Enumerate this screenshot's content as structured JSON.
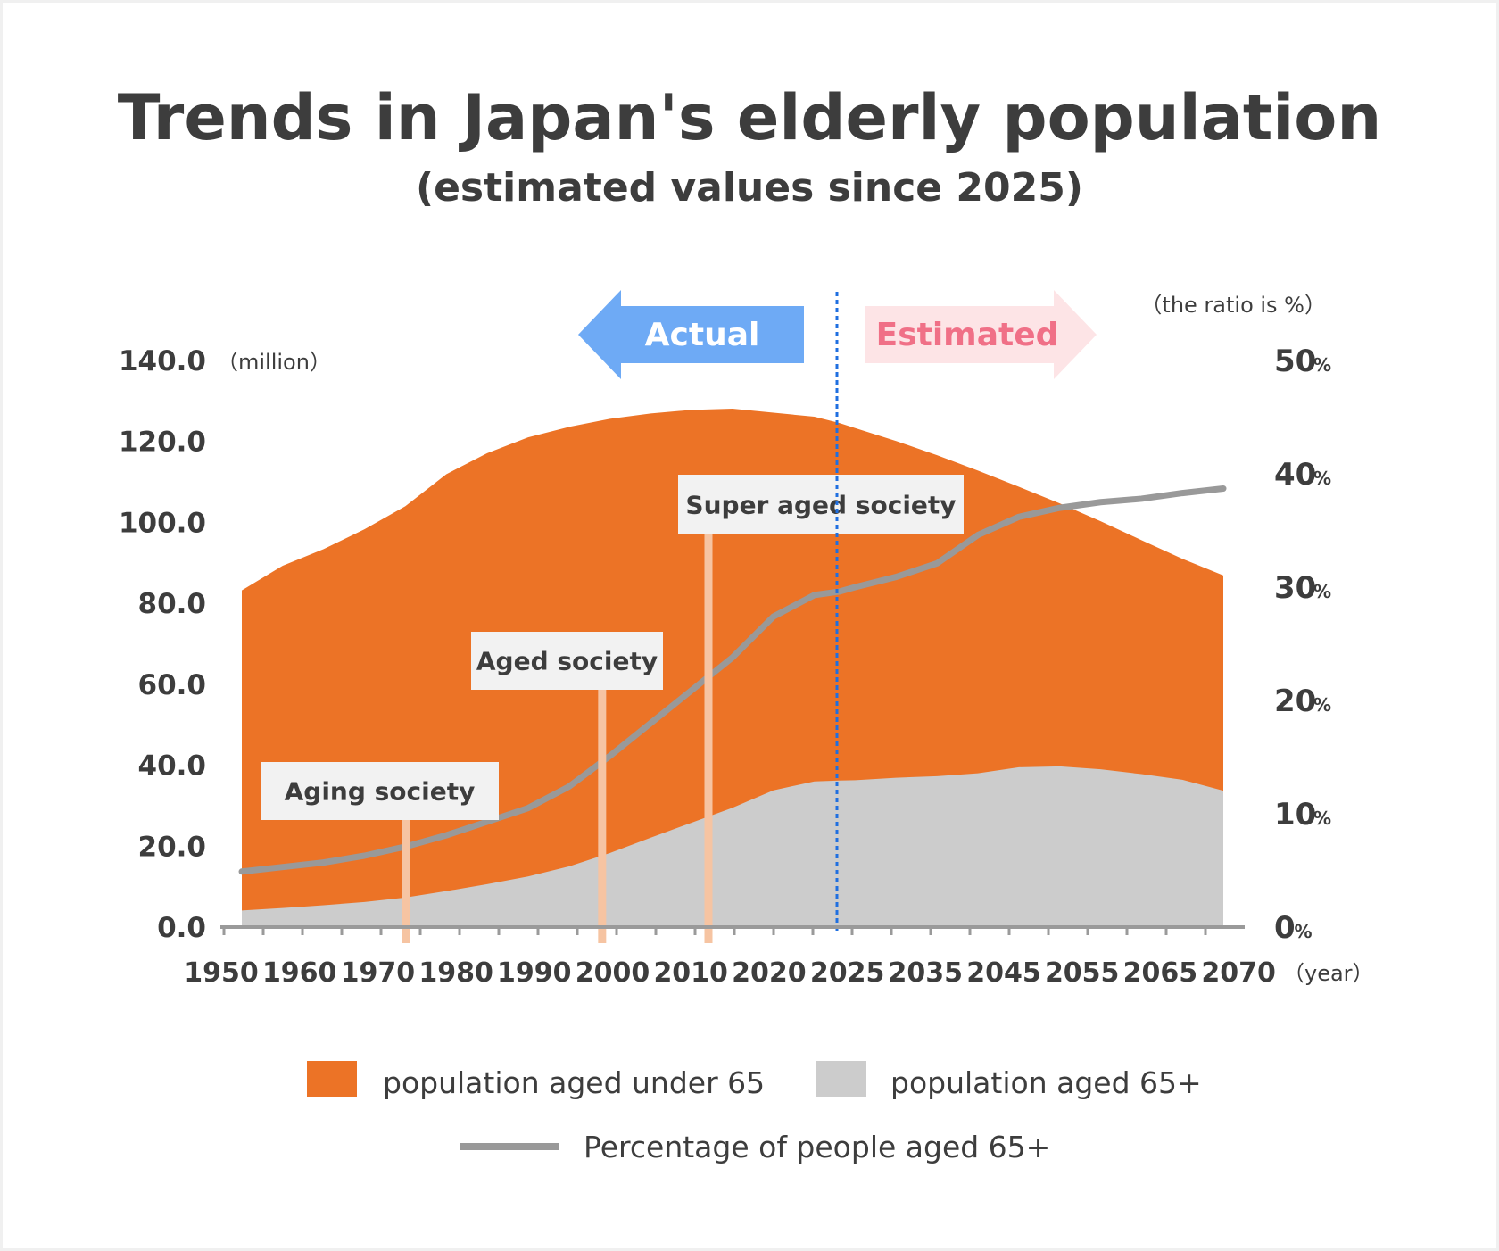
{
  "chart_data": {
    "type": "area",
    "title": "Trends in Japan's elderly population",
    "subtitle": "(estimated values since 2025)",
    "left_unit": "（million）",
    "right_unit": "（the ratio is %）",
    "x_unit": "（year）",
    "ylim": [
      0,
      140
    ],
    "y2lim": [
      0,
      50
    ],
    "x_tick_labels": [
      "1950",
      "1960",
      "1970",
      "1980",
      "1990",
      "2000",
      "2010",
      "2020",
      "2025",
      "2035",
      "2045",
      "2055",
      "2065",
      "2070"
    ],
    "y_tick_labels": [
      "0.0",
      "20.0",
      "40.0",
      "60.0",
      "80.0",
      "100.0",
      "120.0",
      "140.0"
    ],
    "y2_ticks": [
      {
        "value": 0,
        "num": "0",
        "pct": "%"
      },
      {
        "value": 10,
        "num": "10",
        "pct": "%"
      },
      {
        "value": 20,
        "num": "20",
        "pct": "%"
      },
      {
        "value": 30,
        "num": "30",
        "pct": "%"
      },
      {
        "value": 40,
        "num": "40",
        "pct": "%"
      },
      {
        "value": 50,
        "num": "50",
        "pct": "%"
      }
    ],
    "x": [
      "1950",
      "1955",
      "1960",
      "1965",
      "1970",
      "1975",
      "1980",
      "1985",
      "1990",
      "1995",
      "2000",
      "2005",
      "2010",
      "2015",
      "2020",
      "2023",
      "2025",
      "2030",
      "2035",
      "2040",
      "2045",
      "2050",
      "2055",
      "2060",
      "2065",
      "2070"
    ],
    "series": [
      {
        "name": "population aged under 65",
        "color": "#ec7326",
        "kind": "area",
        "total_values": [
          83.2,
          89.3,
          93.4,
          98.3,
          104.0,
          111.9,
          117.1,
          121.0,
          123.6,
          125.6,
          126.9,
          127.8,
          128.1,
          127.1,
          126.1,
          124.6,
          123.3,
          120.1,
          116.6,
          112.8,
          108.8,
          104.7,
          100.3,
          95.6,
          91.0,
          86.9
        ]
      },
      {
        "name": "population aged 65+",
        "color": "#cccccc",
        "kind": "area",
        "values": [
          4.1,
          4.7,
          5.4,
          6.2,
          7.3,
          8.9,
          10.6,
          12.5,
          15.0,
          18.3,
          22.1,
          25.8,
          29.5,
          33.8,
          36.0,
          36.2,
          36.3,
          36.9,
          37.3,
          38.0,
          39.5,
          39.7,
          39.0,
          37.8,
          36.4,
          33.7
        ]
      },
      {
        "name": "Percentage of people aged 65+",
        "color": "#999999",
        "kind": "line",
        "axis": "right",
        "values": [
          4.9,
          5.3,
          5.7,
          6.3,
          7.1,
          8.1,
          9.3,
          10.5,
          12.4,
          15.1,
          18.0,
          20.9,
          23.8,
          27.4,
          29.3,
          29.6,
          30.0,
          30.9,
          32.1,
          34.6,
          36.2,
          37.0,
          37.5,
          37.8,
          38.3,
          38.7
        ]
      }
    ],
    "annotations": [
      {
        "label": "Aging society",
        "year": 1970
      },
      {
        "label": "Aged society",
        "year": 1994
      },
      {
        "label": "Super aged society",
        "year": 2007
      }
    ],
    "divider_year": 2025,
    "arrows": {
      "actual": "Actual",
      "estimated": "Estimated"
    },
    "colors": {
      "under65": "#ec7326",
      "over65": "#cccccc",
      "ratio_line": "#999999",
      "annotation_line": "#f6c4a2",
      "divider": "#1f6fe0",
      "actual_arrow": "#6eaaf5",
      "estimated_arrow": "#fde4e6",
      "estimated_text": "#f07087",
      "axis": "#9a9a9a",
      "text": "#3d3d3d"
    },
    "grid": false,
    "legend_position": "bottom"
  }
}
